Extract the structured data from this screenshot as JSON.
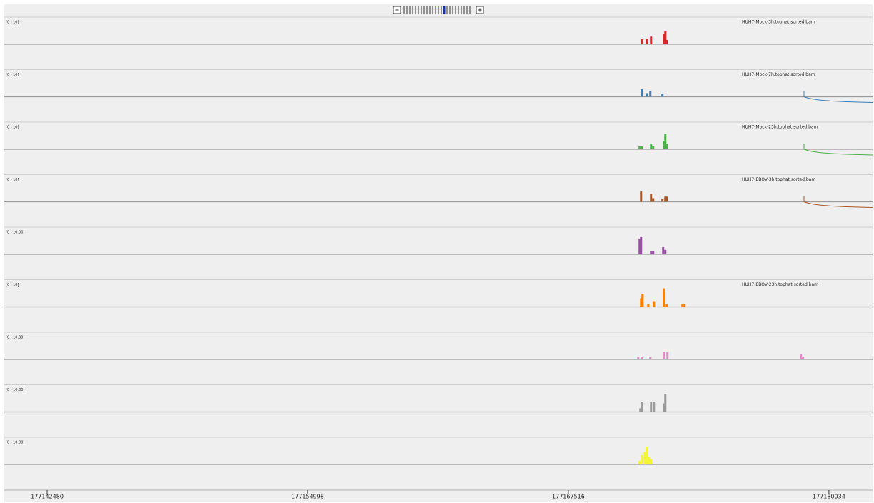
{
  "view_range": [
    177140422,
    177182130
  ],
  "ruler": {
    "ticks": [
      177142480,
      177154998,
      177167516,
      177180034
    ]
  },
  "tracks": [
    {
      "range": "[0 - 10]",
      "name": "HUH7-Mock-3h.tophat.sorted.bam",
      "color": "#d62728",
      "scale_max": 10,
      "tail": false,
      "bars": [
        {
          "pos": 177171043,
          "value": 2.2
        },
        {
          "pos": 177171283,
          "value": 2.2
        },
        {
          "pos": 177171488,
          "value": 3
        },
        {
          "pos": 177172106,
          "value": 4
        },
        {
          "pos": 177172175,
          "value": 5
        },
        {
          "pos": 177172243,
          "value": 1.7
        }
      ]
    },
    {
      "range": "[0 - 10]",
      "name": "HUH7-Mock-7h.tophat.sorted.bam",
      "color": "#3a7fb8",
      "scale_max": 10,
      "tail": true,
      "bars": [
        {
          "pos": 177171043,
          "value": 3
        },
        {
          "pos": 177171283,
          "value": 1.4
        },
        {
          "pos": 177171454,
          "value": 2.2
        },
        {
          "pos": 177172037,
          "value": 1.1
        }
      ]
    },
    {
      "range": "[0 - 10]",
      "name": "HUH7-Mock-23h.tophat.sorted.bam",
      "color": "#4daf4a",
      "scale_max": 10,
      "tail": true,
      "bars": [
        {
          "pos": 177170940,
          "value": 1.1
        },
        {
          "pos": 177171043,
          "value": 1.1
        },
        {
          "pos": 177171488,
          "value": 2.2
        },
        {
          "pos": 177171592,
          "value": 1.1
        },
        {
          "pos": 177172106,
          "value": 3.3
        },
        {
          "pos": 177172175,
          "value": 6
        },
        {
          "pos": 177172243,
          "value": 2.2
        }
      ]
    },
    {
      "range": "[0 - 10]",
      "name": "HUH7-EBOV-3h.tophat.sorted.bam",
      "color": "#a65628",
      "scale_max": 10,
      "tail": true,
      "bars": [
        {
          "pos": 177171009,
          "value": 4
        },
        {
          "pos": 177171488,
          "value": 3
        },
        {
          "pos": 177171592,
          "value": 1.4
        },
        {
          "pos": 177172037,
          "value": 1.1
        },
        {
          "pos": 177172175,
          "value": 2
        },
        {
          "pos": 177172243,
          "value": 2
        }
      ]
    },
    {
      "range": "[0 - 10.00]",
      "color": "#984ea3",
      "scale_max": 10,
      "tail": false,
      "bars": [
        {
          "pos": 177170940,
          "value": 6
        },
        {
          "pos": 177171009,
          "value": 6.7
        },
        {
          "pos": 177171488,
          "value": 1.1
        },
        {
          "pos": 177171592,
          "value": 1.1
        },
        {
          "pos": 177172072,
          "value": 2.8
        },
        {
          "pos": 177172175,
          "value": 1.7
        }
      ]
    },
    {
      "range": "[0 - 10]",
      "name": "HUH7-EBOV-23h.tophat.sorted.bam",
      "color": "#ff7f00",
      "scale_max": 10,
      "tail": false,
      "bars": [
        {
          "pos": 177171009,
          "value": 3.3
        },
        {
          "pos": 177171077,
          "value": 5
        },
        {
          "pos": 177171352,
          "value": 1.1
        },
        {
          "pos": 177171626,
          "value": 2.2
        },
        {
          "pos": 177172106,
          "value": 7.2
        },
        {
          "pos": 177172243,
          "value": 1.1
        },
        {
          "pos": 177172998,
          "value": 1.1
        },
        {
          "pos": 177173100,
          "value": 1.1
        }
      ]
    },
    {
      "range": "[0 - 10.00]",
      "color": "#e78ac3",
      "scale_max": 10,
      "tail": false,
      "bars": [
        {
          "pos": 177170872,
          "value": 1.1
        },
        {
          "pos": 177171043,
          "value": 1.1
        },
        {
          "pos": 177171454,
          "value": 1.1
        },
        {
          "pos": 177172106,
          "value": 2.8
        },
        {
          "pos": 177172277,
          "value": 3
        },
        {
          "pos": 177178690,
          "value": 2
        },
        {
          "pos": 177178793,
          "value": 1.1
        }
      ]
    },
    {
      "range": "[0 - 10.00]",
      "color": "#999999",
      "scale_max": 10,
      "tail": false,
      "bars": [
        {
          "pos": 177170974,
          "value": 1.4
        },
        {
          "pos": 177171043,
          "value": 4
        },
        {
          "pos": 177171488,
          "value": 4
        },
        {
          "pos": 177171626,
          "value": 4
        },
        {
          "pos": 177172106,
          "value": 3.3
        },
        {
          "pos": 177172175,
          "value": 7
        }
      ]
    },
    {
      "range": "[0 - 10.00]",
      "color": "#f5f531",
      "scale_max": 10,
      "tail": false,
      "bars": [
        {
          "pos": 177170940,
          "value": 1.4
        },
        {
          "pos": 177171043,
          "value": 3.6
        },
        {
          "pos": 177171180,
          "value": 5
        },
        {
          "pos": 177171283,
          "value": 6.7
        },
        {
          "pos": 177171386,
          "value": 2.8
        },
        {
          "pos": 177171488,
          "value": 2
        }
      ]
    }
  ]
}
